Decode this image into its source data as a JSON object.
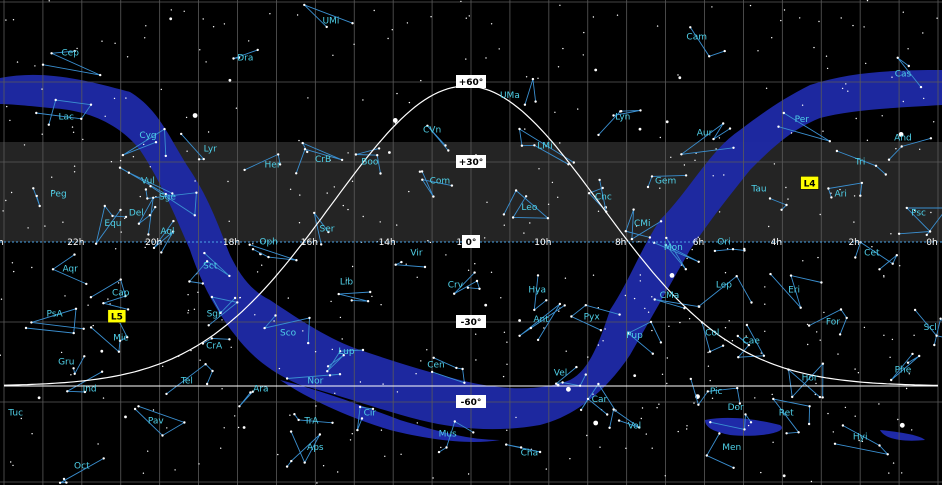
{
  "colors": {
    "background": "#000000",
    "grid": "#5a5a5a",
    "milky_way": "#1f2aa8",
    "constellation_lines": "#3a8fd0",
    "labels": "#4fd0e8",
    "band": "#2c2c2c",
    "equator": "#4aa3e8",
    "tag_bg": "#ffff00"
  },
  "ra_labels": [
    "0h",
    "22h",
    "20h",
    "18h",
    "16h",
    "14h",
    "12h",
    "10h",
    "8h",
    "6h",
    "4h",
    "2h",
    "0h"
  ],
  "ra_hours": [
    24,
    22,
    20,
    18,
    16,
    14,
    12,
    10,
    8,
    6,
    4,
    2,
    0
  ],
  "dec_labels": [
    {
      "text": "+60°",
      "dec": 60
    },
    {
      "text": "+30°",
      "dec": 30
    },
    {
      "text": "0°",
      "dec": 0
    },
    {
      "text": "-30°",
      "dec": -30
    },
    {
      "text": "-60°",
      "dec": -60
    }
  ],
  "tags": [
    {
      "text": "L4",
      "ra": 3.3,
      "dec": 22
    },
    {
      "text": "L5",
      "ra": 21.1,
      "dec": -28
    }
  ],
  "constellations": [
    {
      "name": "UMi",
      "ra": 15.6,
      "dec": 82
    },
    {
      "name": "Dra",
      "ra": 17.8,
      "dec": 68
    },
    {
      "name": "Cam",
      "ra": 6.2,
      "dec": 76
    },
    {
      "name": "Cep",
      "ra": 22.3,
      "dec": 70
    },
    {
      "name": "Cas",
      "ra": 0.9,
      "dec": 62
    },
    {
      "name": "UMa",
      "ra": 11.0,
      "dec": 54
    },
    {
      "name": "Lac",
      "ra": 22.4,
      "dec": 46
    },
    {
      "name": "Lyn",
      "ra": 8.1,
      "dec": 46
    },
    {
      "name": "Per",
      "ra": 3.5,
      "dec": 45
    },
    {
      "name": "Cyg",
      "ra": 20.3,
      "dec": 39
    },
    {
      "name": "CVn",
      "ra": 13.0,
      "dec": 41
    },
    {
      "name": "LMi",
      "ra": 10.1,
      "dec": 35
    },
    {
      "name": "Aur",
      "ra": 6.0,
      "dec": 40
    },
    {
      "name": "And",
      "ra": 0.9,
      "dec": 38
    },
    {
      "name": "Lyr",
      "ra": 18.7,
      "dec": 34
    },
    {
      "name": "CrB",
      "ra": 15.8,
      "dec": 30
    },
    {
      "name": "Boo",
      "ra": 14.6,
      "dec": 29
    },
    {
      "name": "Her",
      "ra": 17.1,
      "dec": 28
    },
    {
      "name": "Tri",
      "ra": 2.0,
      "dec": 29
    },
    {
      "name": "Com",
      "ra": 12.8,
      "dec": 22
    },
    {
      "name": "Gem",
      "ra": 7.0,
      "dec": 22
    },
    {
      "name": "Vul",
      "ra": 20.3,
      "dec": 22
    },
    {
      "name": "Tau",
      "ra": 4.6,
      "dec": 19
    },
    {
      "name": "Ari",
      "ra": 2.5,
      "dec": 17
    },
    {
      "name": "Peg",
      "ra": 22.6,
      "dec": 17
    },
    {
      "name": "Sge",
      "ra": 19.8,
      "dec": 16
    },
    {
      "name": "Cnc",
      "ra": 8.6,
      "dec": 16
    },
    {
      "name": "Leo",
      "ra": 10.5,
      "dec": 12
    },
    {
      "name": "Del",
      "ra": 20.6,
      "dec": 10
    },
    {
      "name": "Psc",
      "ra": 0.5,
      "dec": 10
    },
    {
      "name": "Equ",
      "ra": 21.2,
      "dec": 6
    },
    {
      "name": "Ser",
      "ra": 15.7,
      "dec": 4
    },
    {
      "name": "CMi",
      "ra": 7.6,
      "dec": 6
    },
    {
      "name": "Aql",
      "ra": 19.8,
      "dec": 3
    },
    {
      "name": "Oph",
      "ra": 17.2,
      "dec": -1
    },
    {
      "name": "Mon",
      "ra": 6.8,
      "dec": -3
    },
    {
      "name": "Ori",
      "ra": 5.5,
      "dec": -1
    },
    {
      "name": "Vir",
      "ra": 13.4,
      "dec": -5
    },
    {
      "name": "Cet",
      "ra": 1.7,
      "dec": -5
    },
    {
      "name": "Sct",
      "ra": 18.7,
      "dec": -10
    },
    {
      "name": "Aqr",
      "ra": 22.3,
      "dec": -11
    },
    {
      "name": "Lib",
      "ra": 15.2,
      "dec": -16
    },
    {
      "name": "Lep",
      "ra": 5.5,
      "dec": -17
    },
    {
      "name": "Crv",
      "ra": 12.4,
      "dec": -17
    },
    {
      "name": "Hya",
      "ra": 10.3,
      "dec": -19
    },
    {
      "name": "Eri",
      "ra": 3.7,
      "dec": -19
    },
    {
      "name": "Cap",
      "ra": 21.0,
      "dec": -20
    },
    {
      "name": "CMa",
      "ra": 6.9,
      "dec": -21
    },
    {
      "name": "Sgr",
      "ra": 18.6,
      "dec": -28
    },
    {
      "name": "PsA",
      "ra": 22.7,
      "dec": -28
    },
    {
      "name": "Ant",
      "ra": 10.2,
      "dec": -30
    },
    {
      "name": "Pyx",
      "ra": 8.9,
      "dec": -29
    },
    {
      "name": "For",
      "ra": 2.7,
      "dec": -31
    },
    {
      "name": "Col",
      "ra": 5.8,
      "dec": -35
    },
    {
      "name": "Pup",
      "ra": 7.8,
      "dec": -36
    },
    {
      "name": "Sco",
      "ra": 16.7,
      "dec": -35
    },
    {
      "name": "Scl",
      "ra": 0.2,
      "dec": -33
    },
    {
      "name": "Mic",
      "ra": 21.0,
      "dec": -37
    },
    {
      "name": "CrA",
      "ra": 18.6,
      "dec": -40
    },
    {
      "name": "Cae",
      "ra": 4.8,
      "dec": -38
    },
    {
      "name": "Lup",
      "ra": 15.2,
      "dec": -42
    },
    {
      "name": "Cen",
      "ra": 12.9,
      "dec": -47
    },
    {
      "name": "Gru",
      "ra": 22.4,
      "dec": -46
    },
    {
      "name": "Phe",
      "ra": 0.9,
      "dec": -49
    },
    {
      "name": "Vel",
      "ra": 9.7,
      "dec": -50
    },
    {
      "name": "Hor",
      "ra": 3.3,
      "dec": -52
    },
    {
      "name": "Nor",
      "ra": 16.0,
      "dec": -53
    },
    {
      "name": "Tel",
      "ra": 19.3,
      "dec": -53
    },
    {
      "name": "Ind",
      "ra": 21.8,
      "dec": -56
    },
    {
      "name": "Ara",
      "ra": 17.4,
      "dec": -56
    },
    {
      "name": "Pic",
      "ra": 5.7,
      "dec": -57
    },
    {
      "name": "Car",
      "ra": 8.7,
      "dec": -60
    },
    {
      "name": "Cir",
      "ra": 14.6,
      "dec": -65
    },
    {
      "name": "Ret",
      "ra": 3.9,
      "dec": -65
    },
    {
      "name": "Dor",
      "ra": 5.2,
      "dec": -63
    },
    {
      "name": "TrA",
      "ra": 16.1,
      "dec": -68
    },
    {
      "name": "Tuc",
      "ra": 23.7,
      "dec": -65
    },
    {
      "name": "Pav",
      "ra": 20.1,
      "dec": -68
    },
    {
      "name": "Vol",
      "ra": 7.8,
      "dec": -70
    },
    {
      "name": "Mus",
      "ra": 12.6,
      "dec": -73
    },
    {
      "name": "Hyi",
      "ra": 2.0,
      "dec": -74
    },
    {
      "name": "Men",
      "ra": 5.3,
      "dec": -78
    },
    {
      "name": "Aps",
      "ra": 16.0,
      "dec": -78
    },
    {
      "name": "Cha",
      "ra": 10.5,
      "dec": -80
    },
    {
      "name": "Oct",
      "ra": 22.0,
      "dec": -85
    }
  ]
}
